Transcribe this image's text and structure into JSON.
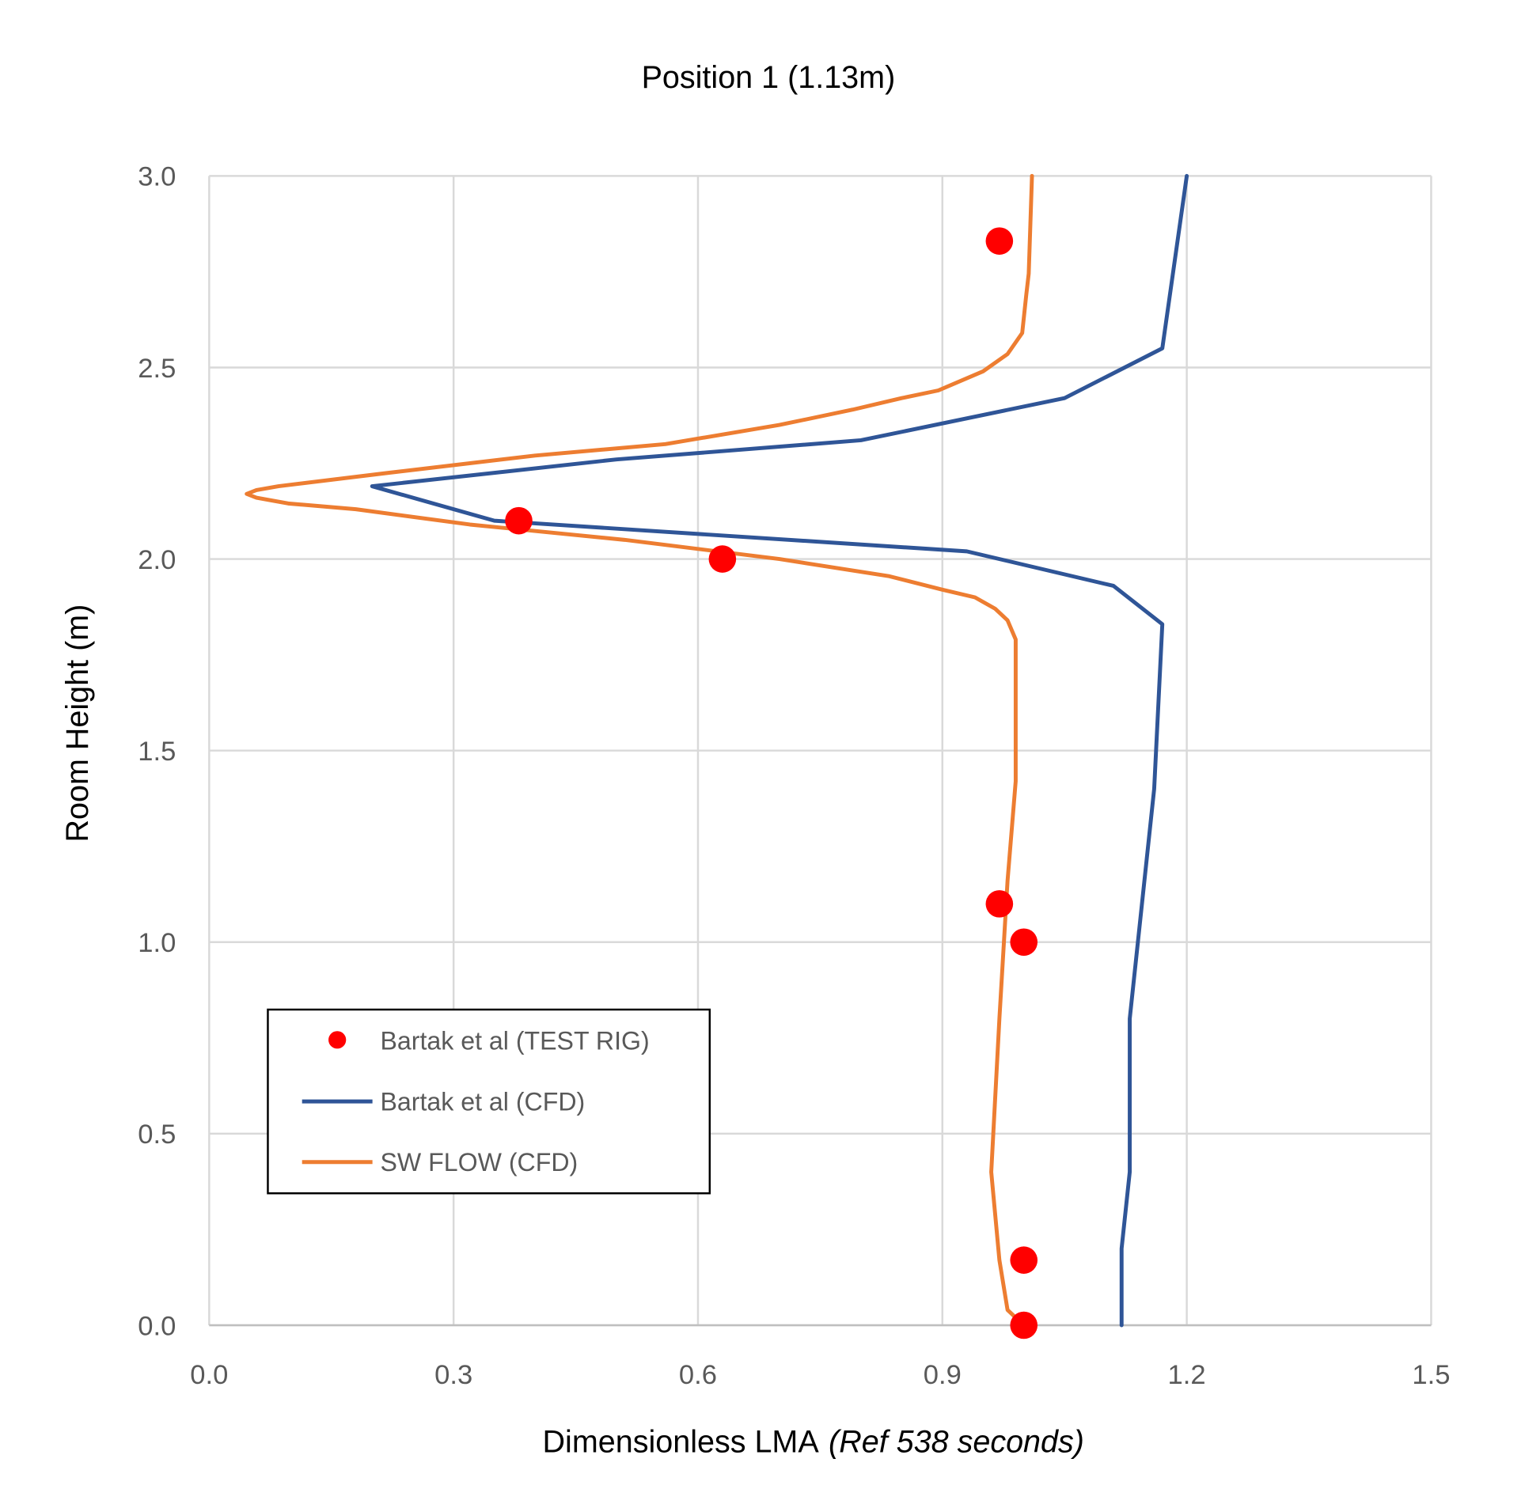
{
  "chart_data": {
    "type": "scatter+line",
    "title": "Position 1 (1.13m)",
    "xlabel": "Dimensionless LMA",
    "xlabel_italic": "(Ref 538 seconds)",
    "ylabel": "Room Height (m)",
    "xlim": [
      0,
      1.5
    ],
    "ylim": [
      0,
      3.0
    ],
    "xticks": [
      "0.0",
      "0.3",
      "0.6",
      "0.9",
      "1.2",
      "1.5"
    ],
    "yticks": [
      "0.0",
      "0.5",
      "1.0",
      "1.5",
      "2.0",
      "2.5",
      "3.0"
    ],
    "grid": true,
    "legend_position": "bottom-left",
    "series": [
      {
        "name": "Bartak et al (TEST RIG)",
        "kind": "scatter",
        "color": "#ff0000",
        "points": [
          [
            0.97,
            2.83
          ],
          [
            0.38,
            2.1
          ],
          [
            0.63,
            2.0
          ],
          [
            0.97,
            1.1
          ],
          [
            1.0,
            1.0
          ],
          [
            1.0,
            0.17
          ],
          [
            1.0,
            0.0
          ]
        ]
      },
      {
        "name": "Bartak et al (CFD)",
        "kind": "line",
        "color": "#2f5597",
        "points": [
          [
            1.12,
            0
          ],
          [
            1.12,
            0.2
          ],
          [
            1.13,
            0.4
          ],
          [
            1.13,
            0.8
          ],
          [
            1.16,
            1.4
          ],
          [
            1.17,
            1.83
          ],
          [
            1.11,
            1.93
          ],
          [
            0.93,
            2.02
          ],
          [
            0.35,
            2.1
          ],
          [
            0.2,
            2.19
          ],
          [
            0.5,
            2.26
          ],
          [
            0.8,
            2.31
          ],
          [
            1.05,
            2.42
          ],
          [
            1.17,
            2.55
          ],
          [
            1.2,
            3.0
          ]
        ]
      },
      {
        "name": "SW FLOW (CFD)",
        "kind": "line",
        "color": "#ed7d31",
        "points": [
          [
            1.0,
            0
          ],
          [
            0.98,
            0.04
          ],
          [
            0.97,
            0.17
          ],
          [
            0.96,
            0.4
          ],
          [
            0.97,
            0.8
          ],
          [
            0.98,
            1.16
          ],
          [
            0.99,
            1.42
          ],
          [
            0.99,
            1.67
          ],
          [
            0.99,
            1.79
          ],
          [
            0.98,
            1.84
          ],
          [
            0.965,
            1.87
          ],
          [
            0.94,
            1.9
          ],
          [
            0.9,
            1.92
          ],
          [
            0.835,
            1.955
          ],
          [
            0.7,
            2.0
          ],
          [
            0.51,
            2.05
          ],
          [
            0.32,
            2.09
          ],
          [
            0.18,
            2.13
          ],
          [
            0.097,
            2.145
          ],
          [
            0.058,
            2.16
          ],
          [
            0.046,
            2.17
          ],
          [
            0.058,
            2.18
          ],
          [
            0.085,
            2.19
          ],
          [
            0.22,
            2.225
          ],
          [
            0.4,
            2.27
          ],
          [
            0.56,
            2.3
          ],
          [
            0.7,
            2.35
          ],
          [
            0.79,
            2.39
          ],
          [
            0.85,
            2.42
          ],
          [
            0.895,
            2.44
          ],
          [
            0.95,
            2.49
          ],
          [
            0.98,
            2.535
          ],
          [
            0.998,
            2.59
          ],
          [
            1.003,
            2.69
          ],
          [
            1.006,
            2.745
          ],
          [
            1.01,
            3.0
          ]
        ]
      }
    ]
  }
}
